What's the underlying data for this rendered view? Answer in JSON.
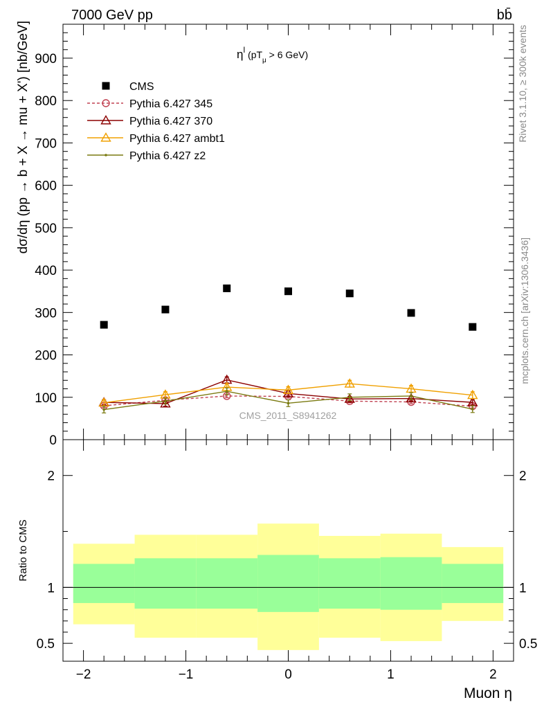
{
  "header": {
    "energy_label": "7000 GeV pp",
    "process_label": "bb̄"
  },
  "side_labels": {
    "rivet": "Rivet 3.1.10, ≥ 300k events",
    "mcplots": "mcplots.cern.ch [arXiv:1306.3436]"
  },
  "chart_data": [
    {
      "type": "scatter",
      "title": "η^l (pT_μ > 6 GeV)",
      "ylabel": "dσ/dη (pp → b + X → mu + X') [nb/GeV]",
      "xlabel": "",
      "xlim": [
        -2.2,
        2.2
      ],
      "ylim": [
        0,
        980
      ],
      "yticks": [
        0,
        100,
        200,
        300,
        400,
        500,
        600,
        700,
        800,
        900
      ],
      "ytick_labels": [
        "0",
        "100",
        "200",
        "300",
        "400",
        "500",
        "600",
        "700",
        "800",
        "900"
      ],
      "x": [
        -1.8,
        -1.2,
        -0.6,
        0.0,
        0.6,
        1.2,
        1.8
      ],
      "watermark": "CMS_2011_S8941262",
      "legend_position": "top-left",
      "series": [
        {
          "name": "CMS",
          "style": "data",
          "color": "#000000",
          "values": [
            271,
            307,
            357,
            350,
            345,
            299,
            266
          ]
        },
        {
          "name": "Pythia 6.427 345",
          "style": "circle-dashed",
          "color": "#c04050",
          "values": [
            80,
            93,
            103,
            102,
            91,
            89,
            79
          ],
          "errors": [
            4,
            4,
            4,
            4,
            4,
            4,
            4
          ]
        },
        {
          "name": "Pythia 6.427 370",
          "style": "triangle",
          "color": "#8b0000",
          "values": [
            88,
            85,
            141,
            109,
            96,
            97,
            88
          ],
          "errors": [
            6,
            6,
            7,
            6,
            6,
            6,
            6
          ]
        },
        {
          "name": "Pythia 6.427 ambt1",
          "style": "triangle",
          "color": "#f0a000",
          "values": [
            87,
            106,
            124,
            117,
            132,
            120,
            105
          ],
          "errors": [
            7,
            7,
            8,
            8,
            8,
            8,
            8
          ]
        },
        {
          "name": "Pythia 6.427 z2",
          "style": "dot",
          "color": "#7a7a10",
          "values": [
            71,
            91,
            114,
            86,
            100,
            103,
            72
          ],
          "errors": [
            8,
            7,
            8,
            8,
            8,
            8,
            8
          ]
        }
      ]
    },
    {
      "type": "area",
      "ylabel": "Ratio to CMS",
      "xlabel": "Muon η",
      "xlim": [
        -2.2,
        2.2
      ],
      "ylim": [
        0.34,
        2.32
      ],
      "yticks": [
        0.5,
        1,
        2
      ],
      "ytick_labels": [
        "0.5",
        "1",
        "2"
      ],
      "xticks": [
        -2,
        -1,
        0,
        1,
        2
      ],
      "xtick_labels": [
        "−2",
        "−1",
        "0",
        "1",
        "2"
      ],
      "reference_line": 1,
      "bins": [
        {
          "lo": -2.1,
          "hi": -1.5,
          "inner": [
            0.86,
            1.21
          ],
          "outer": [
            0.67,
            1.39
          ]
        },
        {
          "lo": -1.5,
          "hi": -0.9,
          "inner": [
            0.81,
            1.26
          ],
          "outer": [
            0.55,
            1.47
          ]
        },
        {
          "lo": -0.9,
          "hi": -0.3,
          "inner": [
            0.81,
            1.26
          ],
          "outer": [
            0.55,
            1.47
          ]
        },
        {
          "lo": -0.3,
          "hi": 0.3,
          "inner": [
            0.78,
            1.29
          ],
          "outer": [
            0.44,
            1.57
          ]
        },
        {
          "lo": 0.3,
          "hi": 0.9,
          "inner": [
            0.81,
            1.26
          ],
          "outer": [
            0.55,
            1.46
          ]
        },
        {
          "lo": 0.9,
          "hi": 1.5,
          "inner": [
            0.8,
            1.27
          ],
          "outer": [
            0.52,
            1.48
          ]
        },
        {
          "lo": 1.5,
          "hi": 2.1,
          "inner": [
            0.86,
            1.21
          ],
          "outer": [
            0.7,
            1.36
          ]
        }
      ],
      "band_colors": {
        "inner": "#99ff99",
        "outer": "#ffff99"
      }
    }
  ]
}
